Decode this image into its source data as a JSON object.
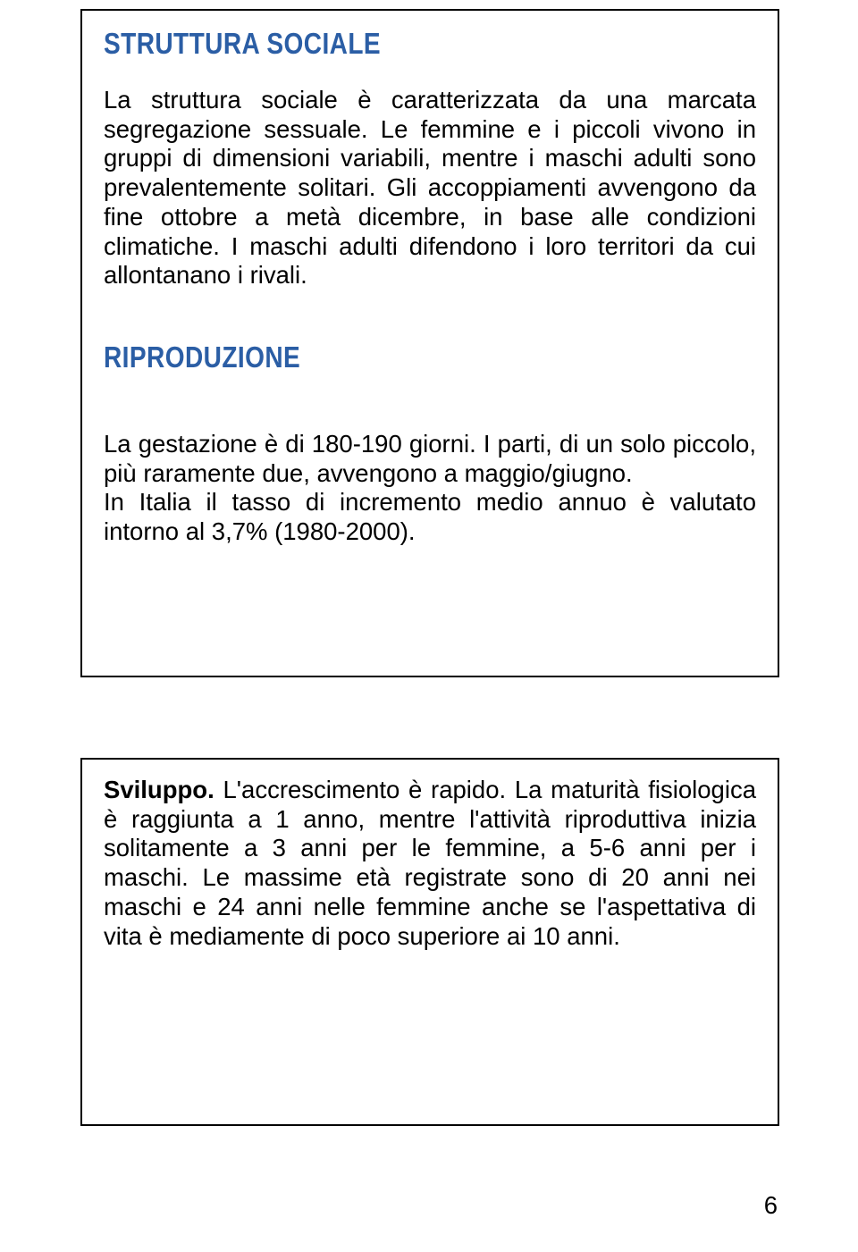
{
  "box1": {
    "heading1": "STRUTTURA SOCIALE",
    "para1": "La struttura sociale è caratterizzata da una marcata segregazione sessuale. Le femmine e i piccoli vivono in gruppi di dimensioni variabili, mentre i maschi adulti sono prevalentemente solitari. Gli accoppiamenti avvengono da fine ottobre a metà dicembre, in base alle condizioni climatiche. I maschi adulti difendono i loro territori da cui allontanano i rivali.",
    "heading2": "RIPRODUZIONE",
    "para2": "La gestazione è di 180-190 giorni. I parti, di un solo piccolo, più raramente due, avvengono a maggio/giugno.",
    "para3": "In Italia il tasso di incremento medio annuo è valutato intorno al 3,7% (1980-2000)."
  },
  "box2": {
    "lead": "Sviluppo.",
    "rest": " L'accrescimento è rapido. La maturità fisiologica è raggiunta a 1 anno, mentre l'attività riproduttiva inizia solitamente a 3 anni per le femmine, a 5-6 anni per i maschi. Le massime età registrate sono di 20 anni nei maschi e 24 anni nelle femmine anche se l'aspettativa di vita è mediamente di poco superiore ai 10 anni."
  },
  "pageNumber": "6"
}
